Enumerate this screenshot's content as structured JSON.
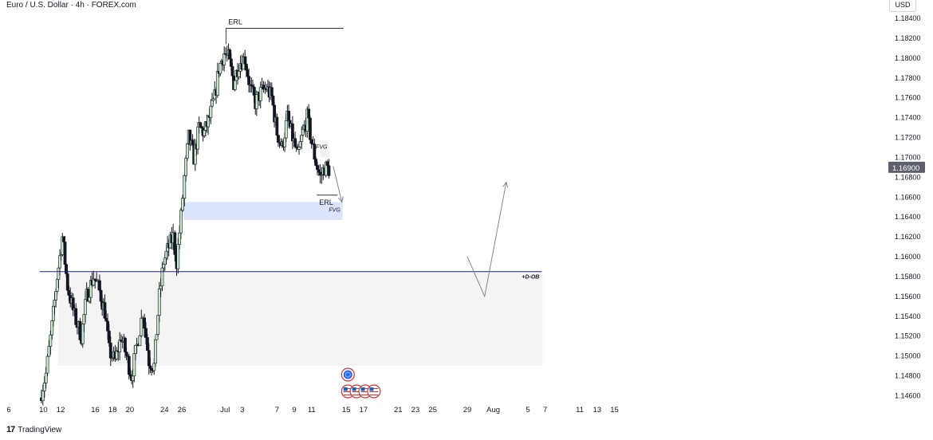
{
  "header": {
    "title": "Euro / U.S. Dollar · 4h · FOREX.com",
    "currency": "USD"
  },
  "footer": {
    "brand": "TradingView",
    "logo_glyph": "17"
  },
  "colors": {
    "bull": "#ffffff",
    "bull_body_fill": "#c8e6c9",
    "bear": "#131722",
    "wick": "#131722",
    "fvg_zone": "#dbe4fb",
    "ob_zone": "#f4f4f4",
    "ob_line": "#1a237e",
    "price_tag": "#5d606b"
  },
  "chart_data": {
    "type": "candlestick",
    "symbol": "Euro / U.S. Dollar",
    "timeframe": "4h",
    "source": "FOREX.com",
    "y_axis": {
      "min": 1.145,
      "max": 1.185,
      "ticks": [
        "1.14600",
        "1.14800",
        "1.15000",
        "1.15200",
        "1.15400",
        "1.15600",
        "1.15800",
        "1.16000",
        "1.16200",
        "1.16400",
        "1.16600",
        "1.16800",
        "1.17000",
        "1.17200",
        "1.17400",
        "1.17600",
        "1.17800",
        "1.18000",
        "1.18200",
        "1.18400"
      ],
      "current_price": "1.16900"
    },
    "x_axis": {
      "ticks": [
        {
          "label": "6",
          "day": 6
        },
        {
          "label": "10",
          "day": 10
        },
        {
          "label": "12",
          "day": 12
        },
        {
          "label": "16",
          "day": 16
        },
        {
          "label": "18",
          "day": 18
        },
        {
          "label": "20",
          "day": 20
        },
        {
          "label": "24",
          "day": 24
        },
        {
          "label": "26",
          "day": 26
        },
        {
          "label": "Jul",
          "day": 31
        },
        {
          "label": "3",
          "day": 33
        },
        {
          "label": "7",
          "day": 37
        },
        {
          "label": "9",
          "day": 39
        },
        {
          "label": "11",
          "day": 41
        },
        {
          "label": "15",
          "day": 45
        },
        {
          "label": "17",
          "day": 47
        },
        {
          "label": "21",
          "day": 51
        },
        {
          "label": "23",
          "day": 53
        },
        {
          "label": "25",
          "day": 55
        },
        {
          "label": "29",
          "day": 59
        },
        {
          "label": "Aug",
          "day": 62
        },
        {
          "label": "5",
          "day": 66
        },
        {
          "label": "7",
          "day": 68
        },
        {
          "label": "11",
          "day": 72
        },
        {
          "label": "13",
          "day": 74
        },
        {
          "label": "15",
          "day": 76
        }
      ]
    },
    "anchors": [
      {
        "day": 9.6,
        "price": 1.1458
      },
      {
        "day": 10.3,
        "price": 1.1482
      },
      {
        "day": 11.0,
        "price": 1.153
      },
      {
        "day": 11.6,
        "price": 1.158
      },
      {
        "day": 12.2,
        "price": 1.162
      },
      {
        "day": 12.8,
        "price": 1.157
      },
      {
        "day": 13.6,
        "price": 1.154
      },
      {
        "day": 14.4,
        "price": 1.152
      },
      {
        "day": 15.0,
        "price": 1.156
      },
      {
        "day": 15.8,
        "price": 1.158
      },
      {
        "day": 16.5,
        "price": 1.1565
      },
      {
        "day": 17.1,
        "price": 1.1545
      },
      {
        "day": 17.6,
        "price": 1.1505
      },
      {
        "day": 18.3,
        "price": 1.1495
      },
      {
        "day": 19.0,
        "price": 1.152
      },
      {
        "day": 19.6,
        "price": 1.15
      },
      {
        "day": 20.2,
        "price": 1.148
      },
      {
        "day": 20.8,
        "price": 1.151
      },
      {
        "day": 21.5,
        "price": 1.1545
      },
      {
        "day": 22.2,
        "price": 1.1495
      },
      {
        "day": 22.8,
        "price": 1.149
      },
      {
        "day": 23.4,
        "price": 1.156
      },
      {
        "day": 23.9,
        "price": 1.1595
      },
      {
        "day": 24.5,
        "price": 1.161
      },
      {
        "day": 25.0,
        "price": 1.162
      },
      {
        "day": 25.4,
        "price": 1.1595
      },
      {
        "day": 25.9,
        "price": 1.164
      },
      {
        "day": 26.3,
        "price": 1.168
      },
      {
        "day": 26.8,
        "price": 1.172
      },
      {
        "day": 27.4,
        "price": 1.17
      },
      {
        "day": 28.0,
        "price": 1.173
      },
      {
        "day": 28.6,
        "price": 1.1725
      },
      {
        "day": 29.2,
        "price": 1.174
      },
      {
        "day": 29.8,
        "price": 1.176
      },
      {
        "day": 30.3,
        "price": 1.179
      },
      {
        "day": 30.9,
        "price": 1.1805
      },
      {
        "day": 31.4,
        "price": 1.18
      },
      {
        "day": 32.0,
        "price": 1.1775
      },
      {
        "day": 32.6,
        "price": 1.1795
      },
      {
        "day": 33.3,
        "price": 1.18
      },
      {
        "day": 33.9,
        "price": 1.177
      },
      {
        "day": 34.5,
        "price": 1.1755
      },
      {
        "day": 35.1,
        "price": 1.1765
      },
      {
        "day": 35.8,
        "price": 1.177
      },
      {
        "day": 36.4,
        "price": 1.176
      },
      {
        "day": 37.0,
        "price": 1.1725
      },
      {
        "day": 37.6,
        "price": 1.171
      },
      {
        "day": 38.2,
        "price": 1.174
      },
      {
        "day": 38.8,
        "price": 1.172
      },
      {
        "day": 39.4,
        "price": 1.17
      },
      {
        "day": 40.0,
        "price": 1.1725
      },
      {
        "day": 40.5,
        "price": 1.174
      },
      {
        "day": 41.0,
        "price": 1.1715
      },
      {
        "day": 41.5,
        "price": 1.1695
      },
      {
        "day": 42.0,
        "price": 1.168
      },
      {
        "day": 42.5,
        "price": 1.169
      },
      {
        "day": 43.0,
        "price": 1.1688
      }
    ],
    "annotations": {
      "erl_top": {
        "label": "ERL",
        "price": 1.183,
        "from_day": 31.1,
        "to_day": 44.7
      },
      "erl_bottom": {
        "label": "ERL",
        "price": 1.1662,
        "from_day": 41.6,
        "to_day": 42.9
      },
      "fvg_upper": {
        "label": "FVG",
        "top": 1.1717,
        "bottom": 1.17,
        "from_day": 42.0,
        "to_day": 43.0
      },
      "fvg_lower": {
        "label": "FVG",
        "top": 1.1655,
        "bottom": 1.1637,
        "from_day": 26.2,
        "to_day": 44.6
      },
      "d_ob": {
        "label": "+D-OB",
        "line": 1.1585,
        "top": 1.1585,
        "bottom": 1.149,
        "from_day": 11.6,
        "to_day": 67.6
      }
    },
    "projections": [
      {
        "path": [
          {
            "day": 43.5,
            "price": 1.1691
          },
          {
            "day": 44.5,
            "price": 1.1655
          }
        ],
        "arrow": true
      },
      {
        "path": [
          {
            "day": 59.0,
            "price": 1.16
          },
          {
            "day": 61.0,
            "price": 1.156
          },
          {
            "day": 63.5,
            "price": 1.1675
          }
        ],
        "arrow": true
      }
    ],
    "calendar_events": [
      {
        "day": 45.2,
        "row": "upper",
        "kind": "globe"
      },
      {
        "day": 45.2,
        "row": "lower",
        "kind": "us-flag"
      },
      {
        "day": 46.2,
        "row": "lower",
        "kind": "us-flag"
      },
      {
        "day": 47.2,
        "row": "lower",
        "kind": "us-flag"
      },
      {
        "day": 48.2,
        "row": "lower",
        "kind": "us-flag"
      }
    ]
  }
}
